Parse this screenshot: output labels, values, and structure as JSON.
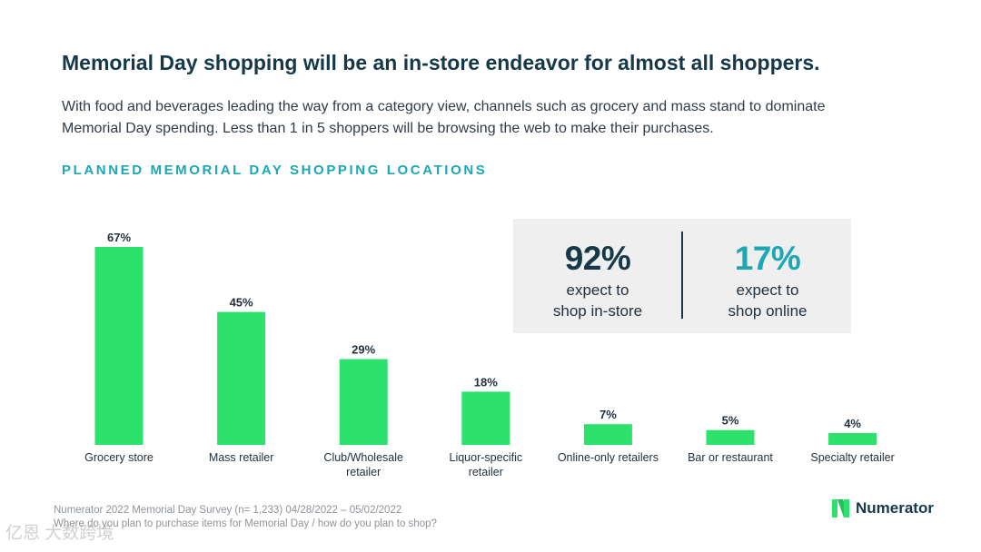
{
  "title": "Memorial Day shopping will be an in-store endeavor for almost all shoppers.",
  "subtitle_line1": "With food and beverages leading the way from a category view, channels such as grocery and mass stand to dominate",
  "subtitle_line2": "Memorial Day spending. Less than 1 in 5 shoppers will be browsing the web to make their purchases.",
  "chart_data": {
    "type": "bar",
    "title": "PLANNED MEMORIAL DAY SHOPPING LOCATIONS",
    "categories": [
      "Grocery store",
      "Mass retailer",
      "Club/Wholesale retailer",
      "Liquor-specific retailer",
      "Online-only retailers",
      "Bar or restaurant",
      "Specialty retailer"
    ],
    "category_lines": [
      [
        "Grocery store"
      ],
      [
        "Mass retailer"
      ],
      [
        "Club/Wholesale",
        "retailer"
      ],
      [
        "Liquor-specific",
        "retailer"
      ],
      [
        "Online-only retailers"
      ],
      [
        "Bar or restaurant"
      ],
      [
        "Specialty retailer"
      ]
    ],
    "values": [
      67,
      45,
      29,
      18,
      7,
      5,
      4
    ],
    "value_labels": [
      "67%",
      "45%",
      "29%",
      "18%",
      "7%",
      "5%",
      "4%"
    ],
    "unit": "%",
    "ylim": [
      0,
      67
    ],
    "grid": false,
    "legend": "none",
    "bar_color": "#2de26c"
  },
  "callout": {
    "left_value": "92%",
    "left_line1": "expect to",
    "left_line2": "shop in-store",
    "right_value": "17%",
    "right_line1": "expect to",
    "right_line2": "shop online",
    "left_color": "#16394a",
    "right_color": "#1ba7b3"
  },
  "footnote": {
    "line1": "Numerator 2022 Memorial Day Survey (n= 1,233) 04/28/2022 – 05/02/2022",
    "line2": "Where do you plan to purchase items for Memorial Day / how do you plan to shop?"
  },
  "logo": {
    "icon": "numerator-n-icon",
    "text": "Numerator",
    "icon_color": "#2de26c"
  },
  "watermark": "亿恩 大数跨境"
}
